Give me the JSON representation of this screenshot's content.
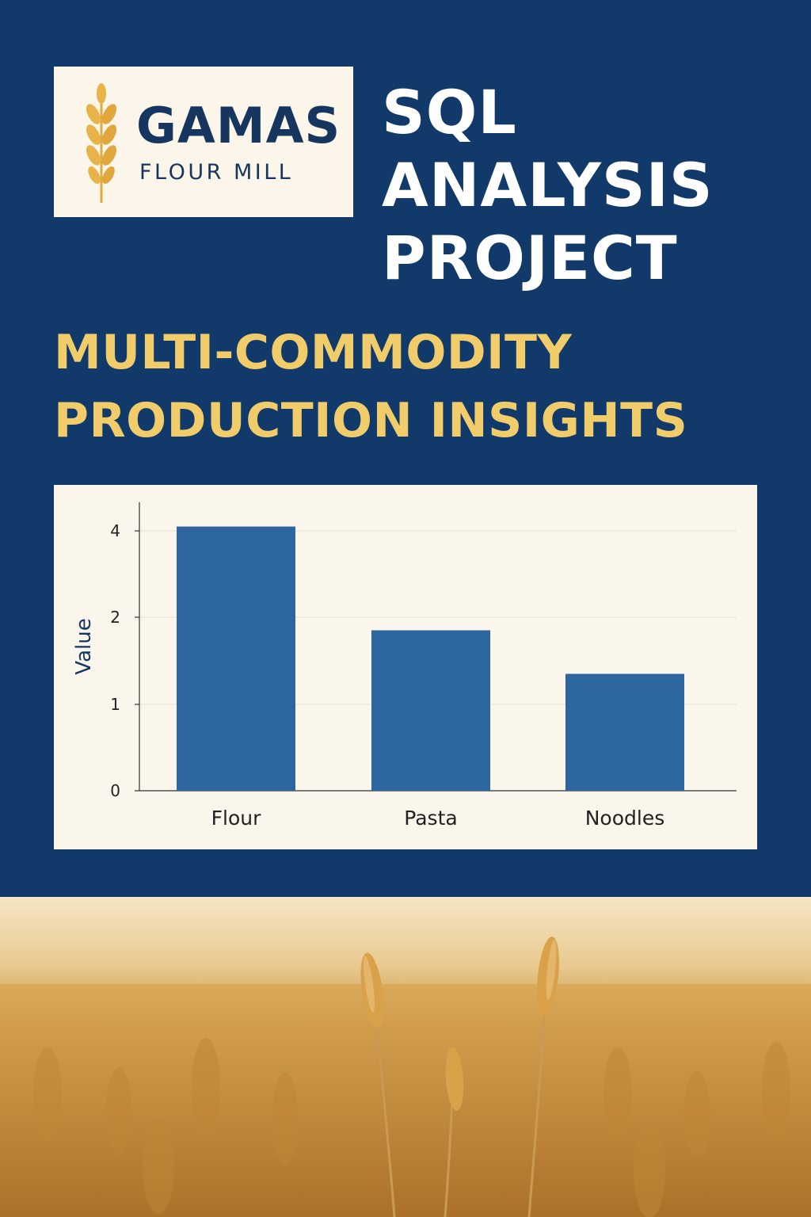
{
  "logo": {
    "name": "GAMAS",
    "subtitle": "FLOUR MILL"
  },
  "title_lines": [
    "SQL",
    "ANALYSIS",
    "PROJECT"
  ],
  "subtitle_lines": [
    "MULTI-COMMODITY",
    "PRODUCTION INSIGHTS"
  ],
  "colors": {
    "background": "#11396a",
    "title": "#ffffff",
    "subtitle": "#f0cc6a",
    "bar": "#2e67a0",
    "panel": "#faf6ec"
  },
  "chart_data": {
    "type": "bar",
    "categories": [
      "Flour",
      "Pasta",
      "Noodles"
    ],
    "values": [
      4.1,
      1.85,
      1.35
    ],
    "ylabel": "Value",
    "yticks": [
      0,
      1,
      2,
      4
    ],
    "grid": true
  }
}
